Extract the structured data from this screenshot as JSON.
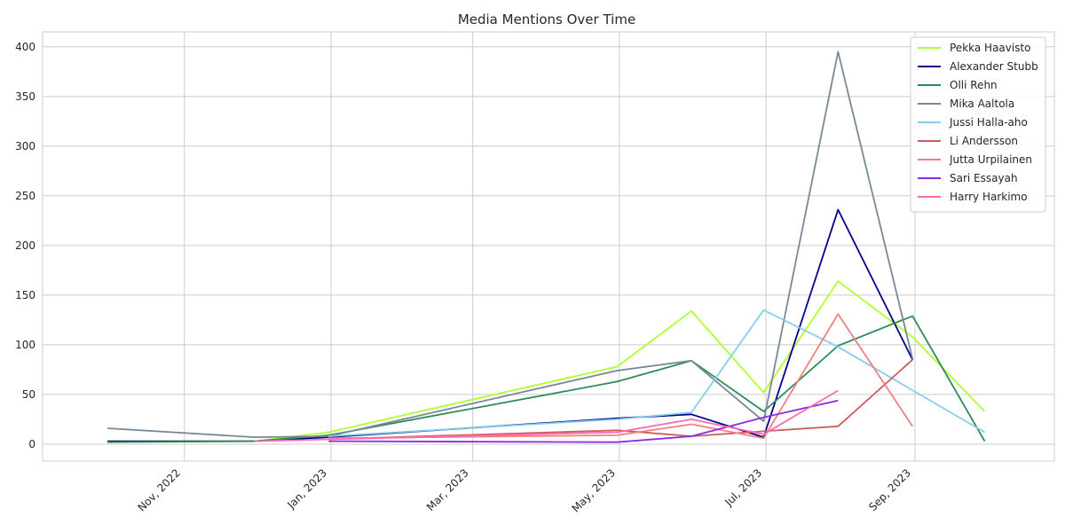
{
  "chart_data": {
    "type": "line",
    "title": "Media Mentions Over Time",
    "xlabel": "",
    "ylabel": "",
    "x_tick_labels": [
      "Nov, 2022",
      "Jan, 2023",
      "Mar, 2023",
      "May, 2023",
      "Jul, 2023",
      "Sep, 2023"
    ],
    "x_ticks": [
      "2022-11-01",
      "2023-01-01",
      "2023-03-01",
      "2023-05-01",
      "2023-07-01",
      "2023-09-01"
    ],
    "y_tick_labels": [
      "0",
      "50",
      "100",
      "150",
      "200",
      "250",
      "300",
      "350",
      "400"
    ],
    "ylim": [
      -17,
      415
    ],
    "xlim": [
      "2022-09-03",
      "2023-10-29"
    ],
    "grid": true,
    "legend_position": "top-right",
    "series": [
      {
        "name": "Pekka Haavisto",
        "color": "#adff2f",
        "x": [
          "2022-09-30",
          "2022-11-30",
          "2022-12-31",
          "2023-04-30",
          "2023-05-31",
          "2023-06-30",
          "2023-07-31",
          "2023-08-31",
          "2023-09-30"
        ],
        "values": [
          3,
          3,
          12,
          78,
          134,
          52,
          164,
          108,
          33
        ]
      },
      {
        "name": "Alexander Stubb",
        "color": "#00008b",
        "x": [
          "2022-09-30",
          "2022-11-30",
          "2022-12-31",
          "2023-04-30",
          "2023-05-31",
          "2023-06-30",
          "2023-07-31",
          "2023-08-31"
        ],
        "values": [
          3,
          3,
          7,
          26,
          30,
          7,
          236,
          85
        ]
      },
      {
        "name": "Olli Rehn",
        "color": "#2e8b57",
        "x": [
          "2022-09-30",
          "2022-11-30",
          "2022-12-31",
          "2023-04-30",
          "2023-05-31",
          "2023-06-30",
          "2023-07-31",
          "2023-08-31",
          "2023-09-30"
        ],
        "values": [
          2,
          3,
          9,
          63,
          84,
          33,
          99,
          129,
          3
        ]
      },
      {
        "name": "Mika Aaltola",
        "color": "#778899",
        "x": [
          "2022-09-30",
          "2022-11-30",
          "2022-12-31",
          "2023-04-30",
          "2023-05-31",
          "2023-06-30",
          "2023-07-31",
          "2023-08-31"
        ],
        "values": [
          16,
          7,
          8,
          74,
          84,
          23,
          395,
          86
        ]
      },
      {
        "name": "Jussi Halla-aho",
        "color": "#87ceeb",
        "x": [
          "2022-12-31",
          "2023-04-30",
          "2023-05-31",
          "2023-06-30",
          "2023-07-31",
          "2023-09-30"
        ],
        "values": [
          8,
          25,
          32,
          135,
          98,
          12
        ]
      },
      {
        "name": "Li Andersson",
        "color": "#cd5c5c",
        "x": [
          "2022-12-31",
          "2023-04-30",
          "2023-05-31",
          "2023-06-30",
          "2023-07-31",
          "2023-08-31"
        ],
        "values": [
          5,
          14,
          8,
          13,
          18,
          85
        ]
      },
      {
        "name": "Jutta Urpilainen",
        "color": "#f08080",
        "x": [
          "2022-12-31",
          "2023-04-30",
          "2023-05-31",
          "2023-06-30",
          "2023-07-31",
          "2023-08-31"
        ],
        "values": [
          6,
          9,
          20,
          6,
          131,
          18
        ]
      },
      {
        "name": "Sari Essayah",
        "color": "#8a2be2",
        "x": [
          "2022-12-31",
          "2023-04-30",
          "2023-05-31",
          "2023-06-30",
          "2023-07-31"
        ],
        "values": [
          3,
          2,
          8,
          27,
          44
        ]
      },
      {
        "name": "Harry Harkimo",
        "color": "#ff69b4",
        "x": [
          "2022-11-30",
          "2023-04-30",
          "2023-05-31",
          "2023-06-30",
          "2023-07-31"
        ],
        "values": [
          3,
          12,
          25,
          10,
          54
        ]
      }
    ]
  }
}
